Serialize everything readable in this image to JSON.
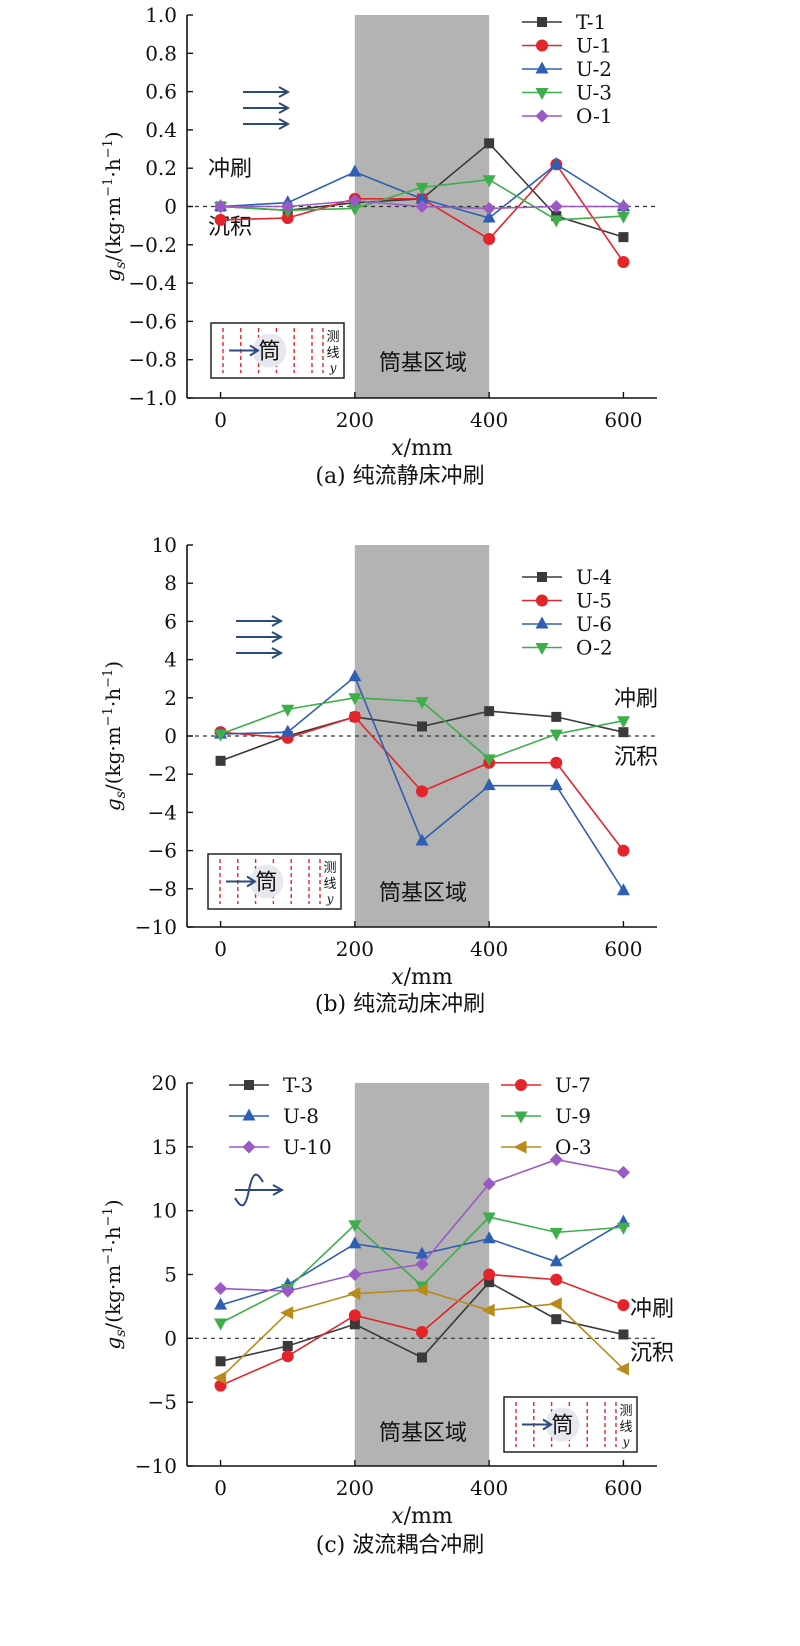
{
  "chart_data": [
    {
      "type": "line",
      "caption": "(a) 纯流静床冲刷",
      "xlabel_var": "x",
      "xlabel_unit": "/mm",
      "ylabel_var": "g",
      "ylabel_sub": "s",
      "ylabel_unit": "/(kg·m",
      "ylabel_e1": "−1",
      "ylabel_mid": "·h",
      "ylabel_e2": "−1",
      "ylabel_end": ")",
      "xlim": [
        -50,
        650
      ],
      "ylim": [
        -1.0,
        1.0
      ],
      "xticks": [
        0,
        200,
        400,
        600
      ],
      "xtick_labels": [
        "0",
        "200",
        "400",
        "600"
      ],
      "yticks": [
        -1.0,
        -0.8,
        -0.6,
        -0.4,
        -0.2,
        0,
        0.2,
        0.4,
        0.6,
        0.8,
        1.0
      ],
      "ytick_labels": [
        "−1.0",
        "−0.8",
        "−0.6",
        "−0.4",
        "−0.2",
        "0",
        "0.2",
        "0.4",
        "0.6",
        "0.8",
        "1.0"
      ],
      "shaded_region": [
        200,
        400
      ],
      "region_label": "筒基区域",
      "erosion_label": "冲刷",
      "deposition_label": "沉积",
      "inset": {
        "cylinder": "筒",
        "line_text": [
          "测",
          "线"
        ],
        "line_var": "y"
      },
      "flow_icon": "current-arrows-icon",
      "legend_position": "top-right",
      "series": [
        {
          "name": "T-1",
          "marker": "square",
          "color": "#3a3a3a",
          "x": [
            0,
            100,
            200,
            300,
            400,
            500,
            600
          ],
          "y": [
            0,
            -0.02,
            0.02,
            0.04,
            0.33,
            -0.05,
            -0.16
          ]
        },
        {
          "name": "U-1",
          "marker": "circle",
          "color": "#e3242b",
          "x": [
            0,
            100,
            200,
            300,
            400,
            500,
            600
          ],
          "y": [
            -0.07,
            -0.06,
            0.04,
            0.04,
            -0.17,
            0.22,
            -0.29
          ]
        },
        {
          "name": "U-2",
          "marker": "triangle-up",
          "color": "#2f5fb3",
          "x": [
            0,
            100,
            200,
            300,
            400,
            500,
            600
          ],
          "y": [
            0,
            0.02,
            0.18,
            0.04,
            -0.06,
            0.22,
            0
          ]
        },
        {
          "name": "U-3",
          "marker": "triangle-down",
          "color": "#3dae4a",
          "x": [
            0,
            100,
            200,
            300,
            400,
            500,
            600
          ],
          "y": [
            0,
            -0.02,
            -0.01,
            0.1,
            0.14,
            -0.07,
            -0.05
          ]
        },
        {
          "name": "O-1",
          "marker": "diamond",
          "color": "#9b59c5",
          "x": [
            0,
            100,
            200,
            300,
            400,
            500,
            600
          ],
          "y": [
            0,
            0,
            0.03,
            0,
            -0.01,
            0,
            0
          ]
        }
      ]
    },
    {
      "type": "line",
      "caption": "(b) 纯流动床冲刷",
      "xlabel_var": "x",
      "xlabel_unit": "/mm",
      "ylabel_var": "g",
      "ylabel_sub": "s",
      "ylabel_unit": "/(kg·m",
      "ylabel_e1": "−1",
      "ylabel_mid": "·h",
      "ylabel_e2": "−1",
      "ylabel_end": ")",
      "xlim": [
        -50,
        650
      ],
      "ylim": [
        -10,
        10
      ],
      "xticks": [
        0,
        200,
        400,
        600
      ],
      "xtick_labels": [
        "0",
        "200",
        "400",
        "600"
      ],
      "yticks": [
        -10,
        -8,
        -6,
        -4,
        -2,
        0,
        2,
        4,
        6,
        8,
        10
      ],
      "ytick_labels": [
        "−10",
        "−8",
        "−6",
        "−4",
        "−2",
        "0",
        "2",
        "4",
        "6",
        "8",
        "10"
      ],
      "shaded_region": [
        200,
        400
      ],
      "region_label": "筒基区域",
      "erosion_label": "冲刷",
      "deposition_label": "沉积",
      "inset": {
        "cylinder": "筒",
        "line_text": [
          "测",
          "线"
        ],
        "line_var": "y"
      },
      "flow_icon": "current-arrows-icon",
      "legend_position": "top-right",
      "series": [
        {
          "name": "U-4",
          "marker": "square",
          "color": "#3a3a3a",
          "x": [
            0,
            100,
            200,
            300,
            400,
            500,
            600
          ],
          "y": [
            -1.3,
            0,
            1.0,
            0.5,
            1.3,
            1.0,
            0.2
          ]
        },
        {
          "name": "U-5",
          "marker": "circle",
          "color": "#e3242b",
          "x": [
            0,
            100,
            200,
            300,
            400,
            500,
            600
          ],
          "y": [
            0.2,
            -0.1,
            1.0,
            -2.9,
            -1.4,
            -1.4,
            -6.0
          ]
        },
        {
          "name": "U-6",
          "marker": "triangle-up",
          "color": "#2f5fb3",
          "x": [
            0,
            100,
            200,
            300,
            400,
            500,
            600
          ],
          "y": [
            0.1,
            0.2,
            3.1,
            -5.5,
            -2.6,
            -2.6,
            -8.1
          ]
        },
        {
          "name": "O-2",
          "marker": "triangle-down",
          "color": "#3dae4a",
          "x": [
            0,
            100,
            200,
            300,
            400,
            500,
            600
          ],
          "y": [
            0.1,
            1.4,
            2.0,
            1.8,
            -1.2,
            0.1,
            0.8
          ]
        }
      ]
    },
    {
      "type": "line",
      "caption": "(c) 波流耦合冲刷",
      "xlabel_var": "x",
      "xlabel_unit": "/mm",
      "ylabel_var": "g",
      "ylabel_sub": "s",
      "ylabel_unit": "/(kg·m",
      "ylabel_e1": "−1",
      "ylabel_mid": "·h",
      "ylabel_e2": "−1",
      "ylabel_end": ")",
      "xlim": [
        -50,
        650
      ],
      "ylim": [
        -10,
        20
      ],
      "xticks": [
        0,
        200,
        400,
        600
      ],
      "xtick_labels": [
        "0",
        "200",
        "400",
        "600"
      ],
      "yticks": [
        -10,
        -5,
        0,
        5,
        10,
        15,
        20
      ],
      "ytick_labels": [
        "−10",
        "−5",
        "0",
        "5",
        "10",
        "15",
        "20"
      ],
      "shaded_region": [
        200,
        400
      ],
      "region_label": "筒基区域",
      "erosion_label": "冲刷",
      "deposition_label": "沉积",
      "inset": {
        "cylinder": "筒",
        "line_text": [
          "测",
          "线"
        ],
        "line_var": "y"
      },
      "flow_icon": "wave-current-icon",
      "legend_position": "top",
      "series": [
        {
          "name": "T-3",
          "marker": "square",
          "color": "#3a3a3a",
          "x": [
            0,
            100,
            200,
            300,
            400,
            500,
            600
          ],
          "y": [
            -1.8,
            -0.6,
            1.1,
            -1.5,
            4.4,
            1.5,
            0.3
          ]
        },
        {
          "name": "U-7",
          "marker": "circle",
          "color": "#e3242b",
          "x": [
            0,
            100,
            200,
            300,
            400,
            500,
            600
          ],
          "y": [
            -3.7,
            -1.4,
            1.8,
            0.5,
            5.0,
            4.6,
            2.6
          ]
        },
        {
          "name": "U-8",
          "marker": "triangle-up",
          "color": "#2f5fb3",
          "x": [
            0,
            100,
            200,
            300,
            400,
            500,
            600
          ],
          "y": [
            2.6,
            4.2,
            7.4,
            6.6,
            7.8,
            6.0,
            9.1
          ]
        },
        {
          "name": "U-9",
          "marker": "triangle-down",
          "color": "#3dae4a",
          "x": [
            0,
            100,
            200,
            300,
            400,
            500,
            600
          ],
          "y": [
            1.2,
            3.9,
            8.9,
            4.1,
            9.5,
            8.3,
            8.7
          ]
        },
        {
          "name": "U-10",
          "marker": "diamond",
          "color": "#9b59c5",
          "x": [
            0,
            100,
            200,
            300,
            400,
            500,
            600
          ],
          "y": [
            3.9,
            3.7,
            5.0,
            5.8,
            12.1,
            14.0,
            13.0
          ]
        },
        {
          "name": "O-3",
          "marker": "triangle-left",
          "color": "#b88a1a",
          "x": [
            0,
            100,
            200,
            300,
            400,
            500,
            600
          ],
          "y": [
            -3.1,
            2.0,
            3.5,
            3.8,
            2.2,
            2.7,
            -2.4
          ]
        }
      ]
    }
  ]
}
